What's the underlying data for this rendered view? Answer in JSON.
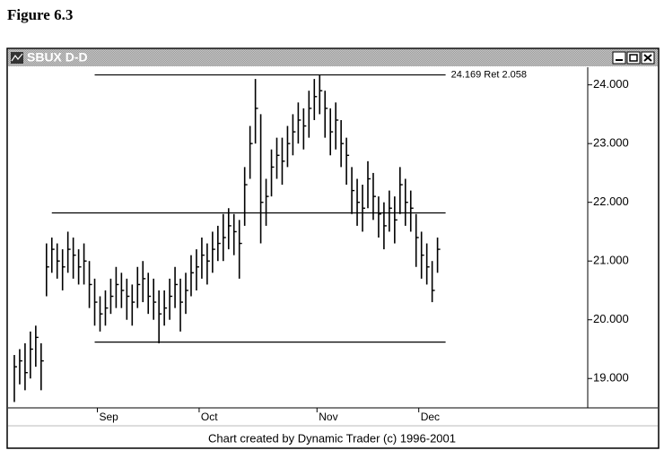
{
  "figure_label": "Figure 6.3",
  "window_title": "SBUX D-D",
  "footer": "Chart created by Dynamic Trader (c) 1996-2001",
  "chart_data": {
    "type": "ohlc",
    "color": "#000000",
    "categories": [
      null,
      null,
      null,
      null,
      null,
      null,
      null,
      null,
      null,
      null,
      null,
      null,
      null,
      null,
      null,
      null,
      "Sep",
      null,
      null,
      null,
      null,
      null,
      null,
      null,
      null,
      null,
      null,
      null,
      null,
      null,
      null,
      null,
      null,
      null,
      null,
      "Oct",
      null,
      null,
      null,
      null,
      null,
      null,
      null,
      null,
      null,
      null,
      null,
      null,
      null,
      null,
      null,
      null,
      null,
      null,
      null,
      null,
      null,
      "Nov",
      null,
      null,
      null,
      null,
      null,
      null,
      null,
      null,
      null,
      null,
      null,
      null,
      null,
      null,
      null,
      null,
      null,
      null,
      "Dec",
      null,
      null,
      null
    ],
    "high": [
      19.4,
      19.5,
      19.6,
      19.8,
      19.9,
      19.6,
      21.3,
      21.4,
      21.3,
      21.2,
      21.5,
      21.4,
      21.2,
      21.3,
      21.0,
      20.7,
      20.4,
      20.5,
      20.7,
      20.9,
      20.8,
      20.7,
      20.6,
      20.9,
      21.0,
      20.8,
      20.7,
      20.5,
      20.5,
      20.7,
      20.9,
      20.7,
      20.8,
      21.1,
      21.2,
      21.4,
      21.3,
      21.5,
      21.6,
      21.8,
      21.9,
      21.8,
      21.7,
      22.6,
      23.3,
      24.1,
      23.5,
      22.4,
      22.9,
      23.1,
      23.1,
      23.3,
      23.5,
      23.7,
      23.6,
      23.9,
      24.1,
      24.17,
      23.9,
      23.6,
      23.7,
      23.4,
      23.1,
      22.6,
      22.4,
      22.3,
      22.7,
      22.5,
      22.1,
      22.0,
      22.2,
      22.1,
      22.6,
      22.4,
      22.2,
      21.8,
      21.5,
      21.3,
      21.0,
      21.4
    ],
    "low": [
      18.6,
      18.9,
      18.8,
      19.0,
      19.2,
      18.8,
      20.4,
      20.8,
      20.7,
      20.5,
      20.8,
      20.7,
      20.6,
      20.6,
      20.2,
      19.9,
      19.8,
      19.9,
      20.1,
      20.2,
      20.2,
      20.0,
      19.9,
      20.2,
      20.3,
      20.1,
      20.0,
      19.6,
      19.9,
      20.0,
      20.2,
      19.8,
      20.1,
      20.4,
      20.5,
      20.7,
      20.6,
      20.8,
      21.0,
      21.0,
      21.2,
      21.1,
      20.7,
      21.6,
      22.4,
      23.0,
      21.3,
      21.6,
      22.1,
      22.4,
      22.3,
      22.6,
      22.8,
      23.0,
      22.9,
      23.1,
      23.4,
      23.5,
      23.1,
      22.8,
      22.9,
      22.6,
      22.3,
      21.8,
      21.6,
      21.5,
      21.9,
      21.7,
      21.4,
      21.2,
      21.5,
      21.3,
      21.8,
      21.6,
      21.5,
      20.9,
      20.7,
      20.6,
      20.3,
      20.8
    ],
    "close": [
      19.2,
      19.3,
      19.1,
      19.5,
      19.7,
      19.3,
      20.9,
      21.2,
      21.0,
      20.9,
      21.2,
      21.1,
      20.9,
      21.0,
      20.6,
      20.3,
      20.1,
      20.2,
      20.4,
      20.6,
      20.5,
      20.4,
      20.3,
      20.6,
      20.7,
      20.4,
      20.3,
      20.1,
      20.2,
      20.4,
      20.6,
      20.3,
      20.5,
      20.8,
      20.9,
      21.1,
      21.0,
      21.2,
      21.3,
      21.4,
      21.6,
      21.5,
      21.3,
      22.3,
      23.0,
      23.6,
      22.0,
      22.1,
      22.6,
      22.8,
      22.7,
      23.0,
      23.2,
      23.4,
      23.3,
      23.6,
      23.8,
      23.9,
      23.6,
      23.2,
      23.4,
      23.0,
      22.8,
      22.2,
      22.0,
      21.9,
      22.4,
      22.1,
      21.8,
      21.6,
      21.9,
      21.7,
      22.3,
      22.0,
      21.9,
      21.4,
      21.1,
      20.9,
      20.5,
      21.2
    ],
    "levels": [
      {
        "value": 24.169,
        "from": 15,
        "label": "24.169 Ret 2.058"
      },
      {
        "value": 21.82,
        "from": 7
      },
      {
        "value": 19.62,
        "from": 15
      }
    ],
    "ylim": [
      18.5,
      24.3
    ],
    "yticks": [
      {
        "value": 19,
        "label": "19.000"
      },
      {
        "value": 20,
        "label": "20.000"
      },
      {
        "value": 21,
        "label": "21.000"
      },
      {
        "value": 22,
        "label": "22.000"
      },
      {
        "value": 23,
        "label": "23.000"
      },
      {
        "value": 24,
        "label": "24.000"
      }
    ]
  }
}
